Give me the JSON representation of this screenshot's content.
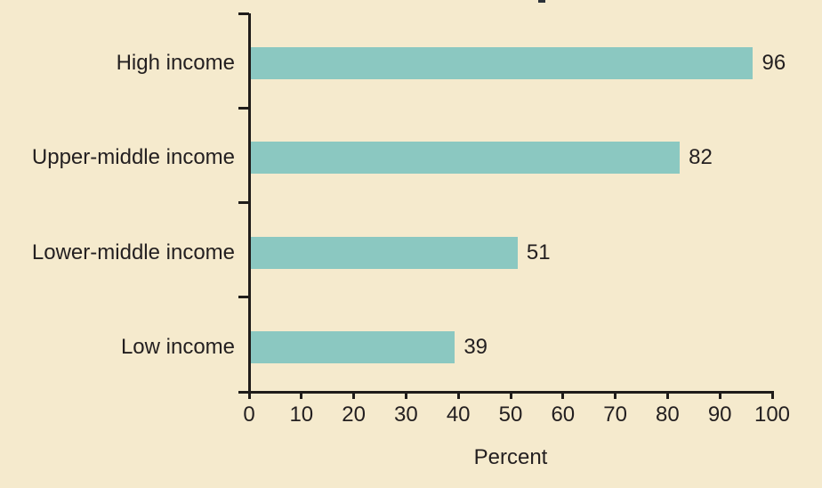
{
  "colors": {
    "background": "#F5EACD",
    "bar": "#8BC8C1",
    "axis": "#1F1C1A",
    "text": "#231F20"
  },
  "chart_data": {
    "type": "bar",
    "orientation": "horizontal",
    "categories": [
      "High income",
      "Upper-middle income",
      "Lower-middle income",
      "Low income"
    ],
    "values": [
      96,
      82,
      51,
      39
    ],
    "data_labels": [
      "96",
      "82",
      "51",
      "39"
    ],
    "xlabel": "Percent",
    "xlim": [
      0,
      100
    ],
    "xticks": [
      "0",
      "10",
      "20",
      "30",
      "40",
      "50",
      "60",
      "70",
      "80",
      "90",
      "100"
    ],
    "grid": false,
    "legend": false
  }
}
